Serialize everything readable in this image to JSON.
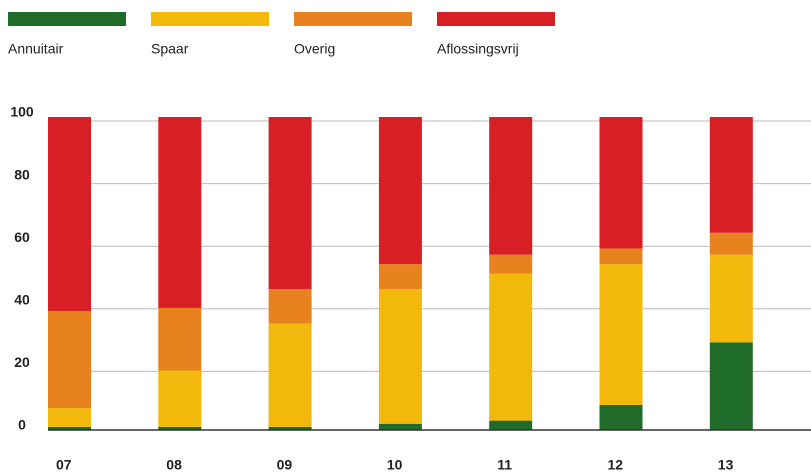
{
  "chart_data": {
    "type": "stacked_bar",
    "categories": [
      "07",
      "08",
      "09",
      "10",
      "11",
      "12",
      "13"
    ],
    "series": [
      {
        "name": "Annuitair",
        "color": "#1e6b2a",
        "values": [
          1,
          1,
          1,
          2,
          3,
          8,
          28
        ]
      },
      {
        "name": "Spaar",
        "color": "#f2b90c",
        "values": [
          6,
          18,
          33,
          43,
          47,
          45,
          28
        ]
      },
      {
        "name": "Overig",
        "color": "#e8821e",
        "values": [
          31,
          20,
          11,
          8,
          6,
          5,
          7
        ]
      },
      {
        "name": "Aflossingsvrij",
        "color": "#d81f26",
        "values": [
          62,
          61,
          55,
          47,
          44,
          42,
          37
        ]
      }
    ],
    "ylim": [
      0,
      100
    ],
    "yticks": [
      0,
      20,
      40,
      60,
      80,
      100
    ],
    "grid": true,
    "legend": "top"
  }
}
